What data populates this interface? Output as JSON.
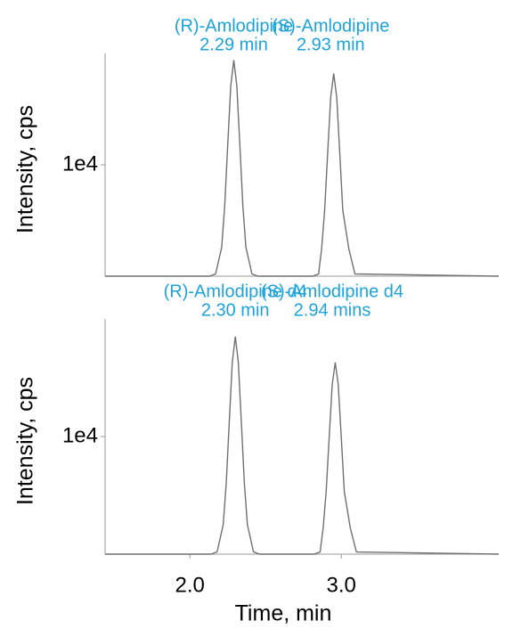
{
  "chart_data": [
    {
      "type": "line",
      "ylabel": "Intensity, cps",
      "xlim": [
        1.44,
        4.04
      ],
      "ylim": [
        0,
        20000
      ],
      "yticks": [
        {
          "value": 10000,
          "label": "1e4"
        }
      ],
      "color": "#707070",
      "x": [
        1.44,
        2.13,
        2.17,
        2.21,
        2.23,
        2.25,
        2.27,
        2.29,
        2.31,
        2.33,
        2.35,
        2.37,
        2.41,
        2.45,
        2.77,
        2.81,
        2.85,
        2.87,
        2.89,
        2.91,
        2.93,
        2.95,
        2.97,
        2.99,
        3.01,
        3.05,
        3.09,
        4.04
      ],
      "values": [
        0,
        0,
        200,
        2600,
        6300,
        11800,
        17100,
        19400,
        17100,
        11800,
        6300,
        2600,
        200,
        0,
        0,
        0,
        200,
        2450,
        5900,
        11050,
        16050,
        18200,
        16050,
        11050,
        5900,
        2450,
        200,
        0
      ],
      "annotations": [
        {
          "name": "(R)-Amlodipine",
          "time": "2.29 min",
          "x": 2.29
        },
        {
          "name": "(S)-Amlodipine",
          "time": "2.93 min",
          "x": 2.93
        }
      ],
      "annotation_color": "#1ca3dc"
    },
    {
      "type": "line",
      "ylabel": "Intensity, cps",
      "xlabel": "Time, min",
      "xlim": [
        1.44,
        4.04
      ],
      "ylim": [
        0,
        20000
      ],
      "yticks": [
        {
          "value": 10000,
          "label": "1e4"
        }
      ],
      "xticks": [
        {
          "value": 2,
          "label": "2.0"
        },
        {
          "value": 3,
          "label": "3.0"
        }
      ],
      "color": "#707070",
      "x": [
        1.44,
        2.14,
        2.18,
        2.22,
        2.24,
        2.26,
        2.28,
        2.3,
        2.32,
        2.34,
        2.36,
        2.38,
        2.42,
        2.46,
        2.78,
        2.82,
        2.86,
        2.88,
        2.9,
        2.92,
        2.94,
        2.96,
        2.98,
        3.0,
        3.02,
        3.06,
        3.1,
        4.04
      ],
      "values": [
        0,
        0,
        200,
        2500,
        6000,
        11200,
        16300,
        18500,
        16300,
        11200,
        6000,
        2500,
        200,
        0,
        0,
        0,
        180,
        2200,
        5300,
        9900,
        14400,
        16300,
        14400,
        9900,
        5300,
        2200,
        180,
        0
      ],
      "annotations": [
        {
          "name": "(R)-Amlodipine d4",
          "time": "2.30 min",
          "x": 2.3
        },
        {
          "name": "(S)-Amlodipine d4",
          "time": "2.94 mins",
          "x": 2.94
        }
      ],
      "annotation_color": "#1ca3dc"
    }
  ]
}
